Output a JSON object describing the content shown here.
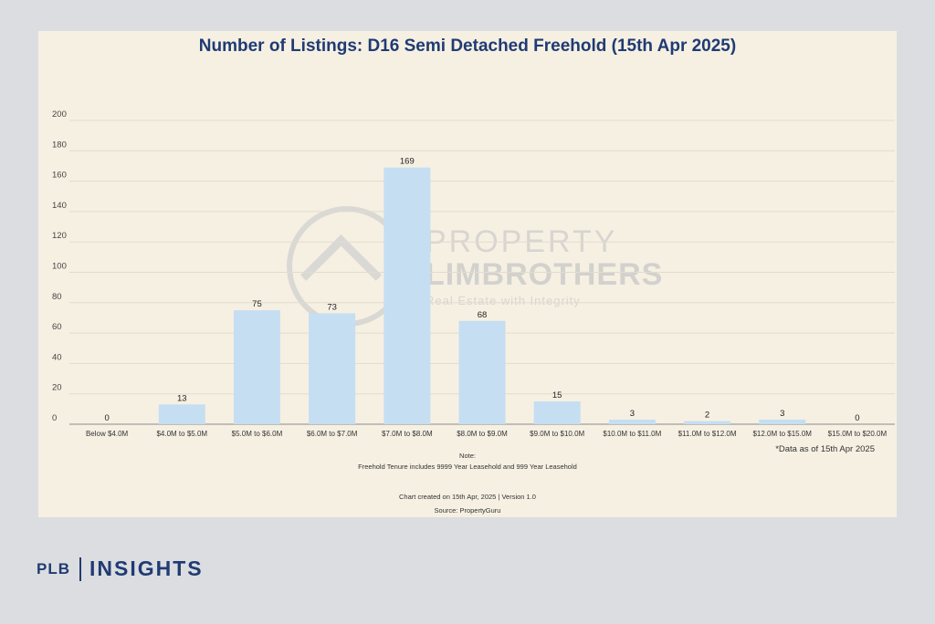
{
  "footer": {
    "brand": "PLB",
    "product": "INSIGHTS"
  },
  "watermark": {
    "line1": "PROPERTY",
    "line2": "LIMBROTHERS",
    "tagline": "Real Estate with Integrity"
  },
  "notes": {
    "note_label": "Note:",
    "note_text": "Freehold Tenure includes 9999 Year Leasehold and 999 Year Leasehold",
    "created": "Chart created on 15th Apr, 2025 | Version 1.0",
    "source": "Source: PropertyGuru",
    "data_as_of": "*Data as of 15th Apr 2025"
  },
  "colors": {
    "bar": "#c5def2",
    "title": "#1f3b73",
    "grid": "#e2dccf",
    "background": "#f6f0e3"
  },
  "chart_data": {
    "type": "bar",
    "title": "Number of Listings: D16 Semi Detached Freehold (15th Apr 2025)",
    "xlabel": "",
    "ylabel": "",
    "categories": [
      "Below $4.0M",
      "$4.0M to $5.0M",
      "$5.0M to $6.0M",
      "$6.0M to $7.0M",
      "$7.0M to $8.0M",
      "$8.0M to $9.0M",
      "$9.0M to $10.0M",
      "$10.0M to $11.0M",
      "$11.0M to $12.0M",
      "$12.0M to $15.0M",
      "$15.0M to $20.0M"
    ],
    "values": [
      0,
      13,
      75,
      73,
      169,
      68,
      15,
      3,
      2,
      3,
      0
    ],
    "ylim": [
      0,
      200
    ],
    "yticks": [
      0,
      20,
      40,
      60,
      80,
      100,
      120,
      140,
      160,
      180,
      200
    ],
    "grid": true,
    "legend": "none"
  }
}
